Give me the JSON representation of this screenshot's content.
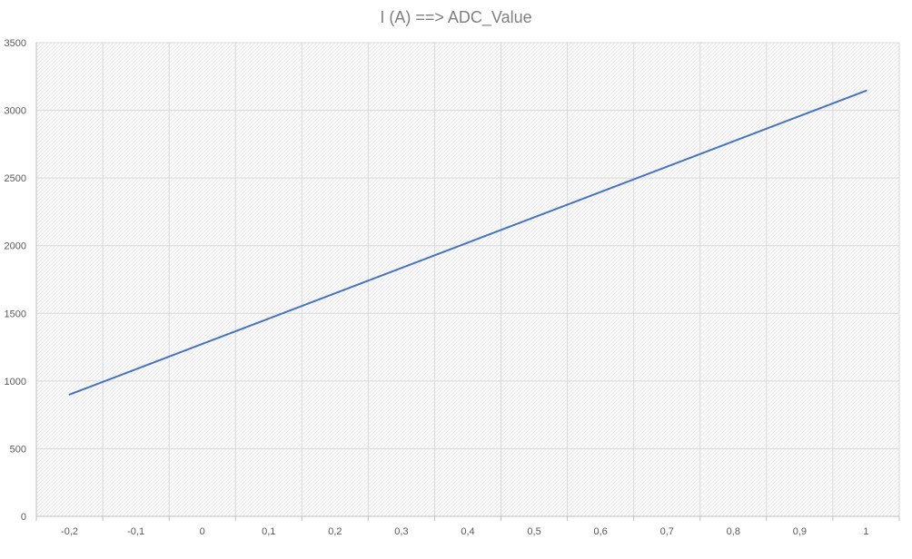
{
  "chart_data": {
    "type": "line",
    "title": "I (A) ==> ADC_Value",
    "xlabel": "",
    "ylabel": "",
    "x_tick_labels": [
      "-0,2",
      "-0,1",
      "0",
      "0,1",
      "0,2",
      "0,3",
      "0,4",
      "0,5",
      "0,6",
      "0,7",
      "0,8",
      "0,9",
      "1"
    ],
    "y_tick_labels": [
      "0",
      "500",
      "1000",
      "1500",
      "2000",
      "2500",
      "3000",
      "3500"
    ],
    "xlim": [
      -0.25,
      1.05
    ],
    "ylim": [
      0,
      3500
    ],
    "grid": true,
    "legend": "none",
    "plot_background": "hatched",
    "series": [
      {
        "color": "#4472c4",
        "x": [
          -0.2,
          1.0
        ],
        "values": [
          900,
          3145
        ]
      }
    ]
  }
}
